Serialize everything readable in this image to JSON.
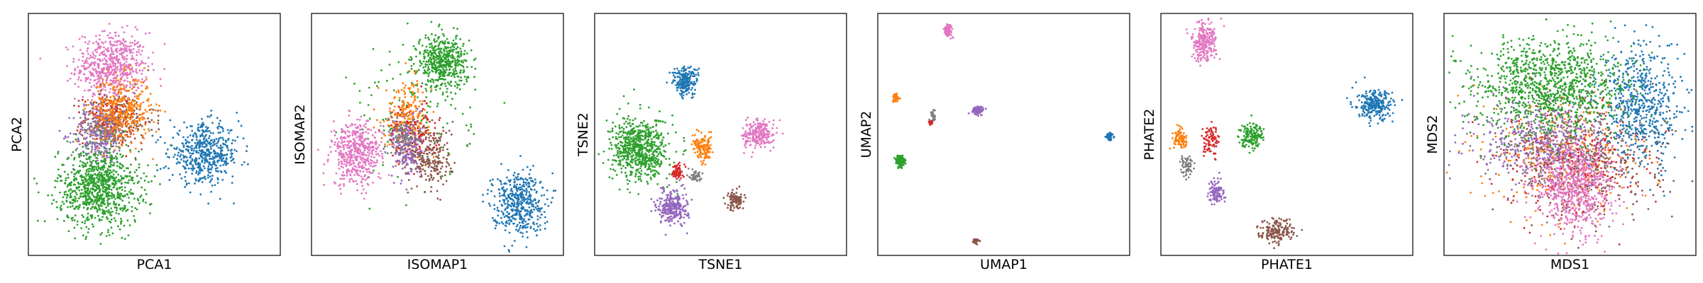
{
  "palette": {
    "blue": "#1f77b4",
    "orange": "#ff7f0e",
    "green": "#2ca02c",
    "red": "#d62728",
    "purple": "#9467bd",
    "brown": "#8c564b",
    "pink": "#e377c2",
    "gray": "#7f7f7f"
  },
  "chart_data": [
    {
      "type": "scatter",
      "xlabel": "PCA1",
      "ylabel": "PCA2",
      "xticks": [],
      "yticks": [],
      "grid": false,
      "legend": "none",
      "clusters": [
        {
          "color": "pink",
          "cx": 0.33,
          "cy": 0.78,
          "sx": 0.07,
          "sy": 0.07,
          "n": 600
        },
        {
          "color": "red",
          "cx": 0.32,
          "cy": 0.56,
          "sx": 0.05,
          "sy": 0.05,
          "n": 160
        },
        {
          "color": "brown",
          "cx": 0.36,
          "cy": 0.56,
          "sx": 0.07,
          "sy": 0.06,
          "n": 200
        },
        {
          "color": "purple",
          "cx": 0.28,
          "cy": 0.5,
          "sx": 0.05,
          "sy": 0.06,
          "n": 240
        },
        {
          "color": "gray",
          "cx": 0.3,
          "cy": 0.52,
          "sx": 0.04,
          "sy": 0.05,
          "n": 120
        },
        {
          "color": "orange",
          "cx": 0.37,
          "cy": 0.6,
          "sx": 0.06,
          "sy": 0.07,
          "n": 380
        },
        {
          "color": "green",
          "cx": 0.28,
          "cy": 0.28,
          "sx": 0.08,
          "sy": 0.08,
          "n": 900
        },
        {
          "color": "blue",
          "cx": 0.7,
          "cy": 0.42,
          "sx": 0.07,
          "sy": 0.06,
          "n": 520
        }
      ]
    },
    {
      "type": "scatter",
      "xlabel": "ISOMAP1",
      "ylabel": "ISOMAP2",
      "xticks": [],
      "yticks": [],
      "grid": false,
      "legend": "none",
      "clusters": [
        {
          "color": "green",
          "cx": 0.52,
          "cy": 0.8,
          "sx": 0.05,
          "sy": 0.055,
          "n": 500
        },
        {
          "color": "green",
          "cx": 0.4,
          "cy": 0.58,
          "sx": 0.12,
          "sy": 0.14,
          "n": 120
        },
        {
          "color": "pink",
          "cx": 0.18,
          "cy": 0.42,
          "sx": 0.05,
          "sy": 0.065,
          "n": 480
        },
        {
          "color": "orange",
          "cx": 0.38,
          "cy": 0.58,
          "sx": 0.045,
          "sy": 0.07,
          "n": 240
        },
        {
          "color": "red",
          "cx": 0.4,
          "cy": 0.5,
          "sx": 0.05,
          "sy": 0.06,
          "n": 140
        },
        {
          "color": "purple",
          "cx": 0.38,
          "cy": 0.44,
          "sx": 0.03,
          "sy": 0.06,
          "n": 200
        },
        {
          "color": "brown",
          "cx": 0.48,
          "cy": 0.4,
          "sx": 0.04,
          "sy": 0.07,
          "n": 220
        },
        {
          "color": "gray",
          "cx": 0.36,
          "cy": 0.5,
          "sx": 0.03,
          "sy": 0.04,
          "n": 90
        },
        {
          "color": "blue",
          "cx": 0.82,
          "cy": 0.22,
          "sx": 0.05,
          "sy": 0.065,
          "n": 460
        }
      ]
    },
    {
      "type": "scatter",
      "xlabel": "TSNE1",
      "ylabel": "TSNE2",
      "xticks": [],
      "yticks": [],
      "grid": false,
      "legend": "none",
      "clusters": [
        {
          "color": "blue",
          "cx": 0.36,
          "cy": 0.72,
          "sx": 0.025,
          "sy": 0.03,
          "n": 220
        },
        {
          "color": "green",
          "cx": 0.18,
          "cy": 0.44,
          "sx": 0.055,
          "sy": 0.065,
          "n": 700
        },
        {
          "color": "orange",
          "cx": 0.43,
          "cy": 0.44,
          "sx": 0.02,
          "sy": 0.025,
          "n": 140
        },
        {
          "color": "pink",
          "cx": 0.65,
          "cy": 0.5,
          "sx": 0.03,
          "sy": 0.03,
          "n": 240
        },
        {
          "color": "red",
          "cx": 0.33,
          "cy": 0.35,
          "sx": 0.01,
          "sy": 0.015,
          "n": 60
        },
        {
          "color": "gray",
          "cx": 0.4,
          "cy": 0.33,
          "sx": 0.01,
          "sy": 0.015,
          "n": 50
        },
        {
          "color": "purple",
          "cx": 0.31,
          "cy": 0.2,
          "sx": 0.03,
          "sy": 0.035,
          "n": 280
        },
        {
          "color": "brown",
          "cx": 0.56,
          "cy": 0.23,
          "sx": 0.018,
          "sy": 0.02,
          "n": 110
        }
      ]
    },
    {
      "type": "scatter",
      "xlabel": "UMAP1",
      "ylabel": "UMAP2",
      "xticks": [],
      "yticks": [],
      "grid": false,
      "legend": "none",
      "clusters": [
        {
          "color": "pink",
          "cx": 0.28,
          "cy": 0.93,
          "sx": 0.008,
          "sy": 0.012,
          "n": 90
        },
        {
          "color": "orange",
          "cx": 0.07,
          "cy": 0.65,
          "sx": 0.007,
          "sy": 0.008,
          "n": 60
        },
        {
          "color": "gray",
          "cx": 0.22,
          "cy": 0.58,
          "sx": 0.005,
          "sy": 0.012,
          "n": 30
        },
        {
          "color": "red",
          "cx": 0.21,
          "cy": 0.55,
          "sx": 0.004,
          "sy": 0.006,
          "n": 24
        },
        {
          "color": "purple",
          "cx": 0.4,
          "cy": 0.6,
          "sx": 0.012,
          "sy": 0.008,
          "n": 80
        },
        {
          "color": "blue",
          "cx": 0.92,
          "cy": 0.49,
          "sx": 0.006,
          "sy": 0.008,
          "n": 60
        },
        {
          "color": "green",
          "cx": 0.09,
          "cy": 0.39,
          "sx": 0.009,
          "sy": 0.012,
          "n": 150
        },
        {
          "color": "brown",
          "cx": 0.39,
          "cy": 0.06,
          "sx": 0.006,
          "sy": 0.005,
          "n": 40
        }
      ]
    },
    {
      "type": "scatter",
      "xlabel": "PHATE1",
      "ylabel": "PHATE2",
      "xticks": [],
      "yticks": [],
      "grid": false,
      "legend": "none",
      "clusters": [
        {
          "color": "pink",
          "cx": 0.17,
          "cy": 0.88,
          "sx": 0.025,
          "sy": 0.04,
          "n": 240
        },
        {
          "color": "blue",
          "cx": 0.85,
          "cy": 0.62,
          "sx": 0.035,
          "sy": 0.03,
          "n": 260
        },
        {
          "color": "orange",
          "cx": 0.08,
          "cy": 0.48,
          "sx": 0.015,
          "sy": 0.02,
          "n": 90
        },
        {
          "color": "red",
          "cx": 0.2,
          "cy": 0.47,
          "sx": 0.015,
          "sy": 0.03,
          "n": 90
        },
        {
          "color": "green",
          "cx": 0.36,
          "cy": 0.5,
          "sx": 0.025,
          "sy": 0.025,
          "n": 160
        },
        {
          "color": "gray",
          "cx": 0.1,
          "cy": 0.37,
          "sx": 0.012,
          "sy": 0.025,
          "n": 60
        },
        {
          "color": "purple",
          "cx": 0.22,
          "cy": 0.26,
          "sx": 0.015,
          "sy": 0.025,
          "n": 100
        },
        {
          "color": "brown",
          "cx": 0.46,
          "cy": 0.1,
          "sx": 0.035,
          "sy": 0.025,
          "n": 180
        }
      ]
    },
    {
      "type": "scatter",
      "xlabel": "MDS1",
      "ylabel": "MDS2",
      "xticks": [],
      "yticks": [],
      "grid": false,
      "legend": "none",
      "clusters": [
        {
          "color": "orange",
          "cx": 0.48,
          "cy": 0.42,
          "sx": 0.15,
          "sy": 0.12,
          "n": 360
        },
        {
          "color": "brown",
          "cx": 0.6,
          "cy": 0.4,
          "sx": 0.16,
          "sy": 0.12,
          "n": 360
        },
        {
          "color": "red",
          "cx": 0.52,
          "cy": 0.38,
          "sx": 0.13,
          "sy": 0.12,
          "n": 260
        },
        {
          "color": "gray",
          "cx": 0.45,
          "cy": 0.42,
          "sx": 0.13,
          "sy": 0.1,
          "n": 200
        },
        {
          "color": "purple",
          "cx": 0.38,
          "cy": 0.48,
          "sx": 0.14,
          "sy": 0.09,
          "n": 420
        },
        {
          "color": "blue",
          "cx": 0.78,
          "cy": 0.62,
          "sx": 0.08,
          "sy": 0.12,
          "n": 600
        },
        {
          "color": "green",
          "cx": 0.42,
          "cy": 0.7,
          "sx": 0.15,
          "sy": 0.1,
          "n": 1100
        },
        {
          "color": "pink",
          "cx": 0.52,
          "cy": 0.28,
          "sx": 0.08,
          "sy": 0.1,
          "n": 700
        }
      ]
    }
  ]
}
